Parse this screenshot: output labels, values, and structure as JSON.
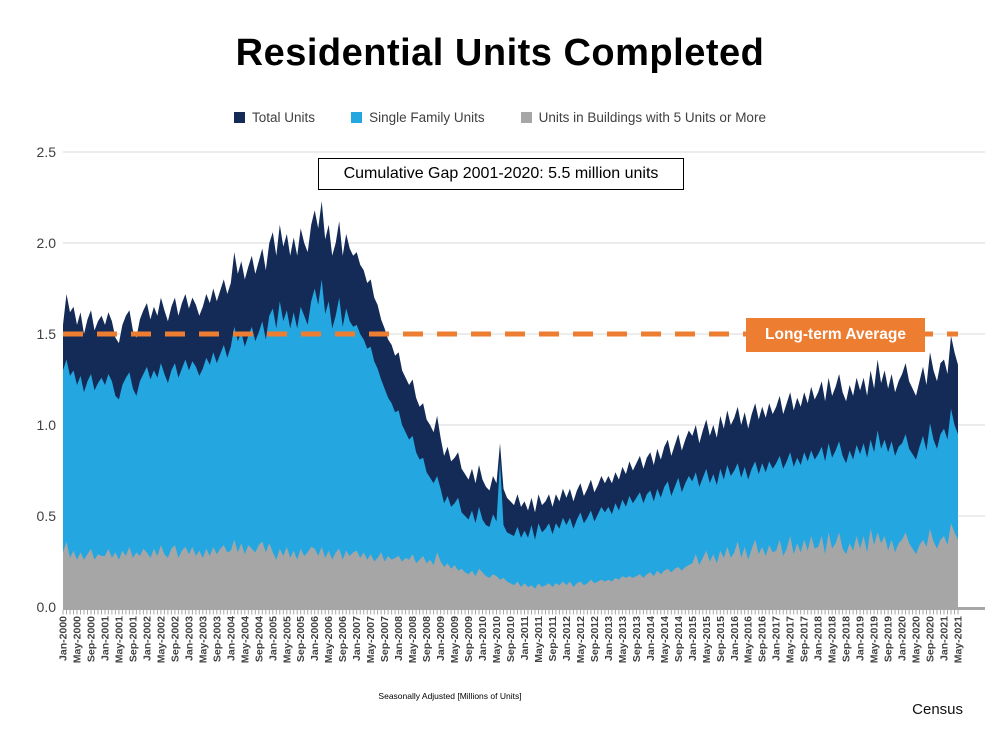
{
  "title": "Residential Units Completed",
  "legend": [
    {
      "label": "Total Units",
      "color": "#132B56"
    },
    {
      "label": "Single Family Units",
      "color": "#24A7E0"
    },
    {
      "label": "Units in Buildings with 5 Units or More",
      "color": "#A6A6A6"
    }
  ],
  "annotation": "Cumulative Gap 2001-2020: 5.5 million units",
  "average_line": {
    "label": "Long-term Average",
    "value": 1.5,
    "color": "#ED7D31"
  },
  "footer": {
    "note": "Seasonally Adjusted [Millions of Units]",
    "source": "Census"
  },
  "colors": {
    "gridline": "#D9D9D9",
    "axis": "#A6A6A6",
    "tick_text": "#404040"
  },
  "chart_data": {
    "type": "area",
    "mode": "overlapping",
    "frequency": "monthly",
    "x_start": "Jan-2000",
    "x_end": "May-2021",
    "months_per_label": 4,
    "ylim": [
      0,
      2.5
    ],
    "y_ticks": [
      "0.0",
      "0.5",
      "1.0",
      "1.5",
      "2.0",
      "2.5"
    ],
    "grid": true,
    "legend_position": "top",
    "x_labels": [
      "Jan-2000",
      "May-2000",
      "Sep-2000",
      "Jan-2001",
      "May-2001",
      "Sep-2001",
      "Jan-2002",
      "May-2002",
      "Sep-2002",
      "Jan-2003",
      "May-2003",
      "Sep-2003",
      "Jan-2004",
      "May-2004",
      "Sep-2004",
      "Jan-2005",
      "May-2005",
      "Sep-2005",
      "Jan-2006",
      "May-2006",
      "Sep-2006",
      "Jan-2007",
      "May-2007",
      "Sep-2007",
      "Jan-2008",
      "May-2008",
      "Sep-2008",
      "Jan-2009",
      "May-2009",
      "Sep-2009",
      "Jan-2010",
      "May-2010",
      "Sep-2010",
      "Jan-2011",
      "May-2011",
      "Sep-2011",
      "Jan-2012",
      "May-2012",
      "Sep-2012",
      "Jan-2013",
      "May-2013",
      "Sep-2013",
      "Jan-2014",
      "May-2014",
      "Sep-2014",
      "Jan-2015",
      "May-2015",
      "Sep-2015",
      "Jan-2016",
      "May-2016",
      "Sep-2016",
      "Jan-2017",
      "May-2017",
      "Sep-2017",
      "Jan-2018",
      "May-2018",
      "Sep-2018",
      "Jan-2019",
      "May-2019",
      "Sep-2019",
      "Jan-2020",
      "May-2020",
      "Sep-2020",
      "Jan-2021",
      "May-2021"
    ],
    "series": [
      {
        "name": "Total Units",
        "color": "#132B56",
        "values": [
          1.55,
          1.72,
          1.62,
          1.65,
          1.55,
          1.62,
          1.5,
          1.58,
          1.63,
          1.52,
          1.57,
          1.6,
          1.55,
          1.62,
          1.57,
          1.48,
          1.45,
          1.55,
          1.6,
          1.63,
          1.52,
          1.48,
          1.58,
          1.63,
          1.67,
          1.58,
          1.65,
          1.6,
          1.7,
          1.63,
          1.57,
          1.65,
          1.7,
          1.6,
          1.67,
          1.72,
          1.64,
          1.7,
          1.66,
          1.6,
          1.65,
          1.72,
          1.67,
          1.75,
          1.68,
          1.74,
          1.8,
          1.72,
          1.78,
          1.95,
          1.83,
          1.9,
          1.8,
          1.87,
          1.93,
          1.83,
          1.9,
          1.97,
          1.85,
          2.0,
          2.06,
          1.93,
          2.1,
          1.98,
          2.05,
          1.93,
          2.03,
          1.93,
          2.08,
          2.0,
          1.95,
          2.1,
          2.18,
          2.08,
          2.23,
          2.02,
          2.1,
          1.93,
          2.0,
          2.12,
          1.93,
          2.05,
          1.97,
          1.93,
          1.95,
          1.88,
          1.85,
          1.78,
          1.8,
          1.7,
          1.66,
          1.58,
          1.53,
          1.47,
          1.44,
          1.38,
          1.4,
          1.3,
          1.26,
          1.22,
          1.25,
          1.15,
          1.1,
          1.12,
          1.03,
          1.0,
          0.96,
          1.05,
          0.93,
          0.83,
          0.88,
          0.8,
          0.82,
          0.85,
          0.76,
          0.73,
          0.7,
          0.76,
          0.68,
          0.78,
          0.7,
          0.66,
          0.64,
          0.72,
          0.68,
          0.9,
          0.65,
          0.6,
          0.58,
          0.56,
          0.62,
          0.55,
          0.58,
          0.53,
          0.6,
          0.52,
          0.62,
          0.56,
          0.58,
          0.62,
          0.55,
          0.62,
          0.58,
          0.65,
          0.6,
          0.65,
          0.58,
          0.64,
          0.68,
          0.61,
          0.65,
          0.7,
          0.63,
          0.67,
          0.72,
          0.68,
          0.72,
          0.68,
          0.74,
          0.7,
          0.77,
          0.73,
          0.8,
          0.75,
          0.79,
          0.83,
          0.76,
          0.82,
          0.85,
          0.78,
          0.87,
          0.81,
          0.88,
          0.92,
          0.83,
          0.89,
          0.95,
          0.86,
          0.92,
          0.97,
          0.94,
          1.0,
          0.9,
          0.97,
          1.03,
          0.94,
          1.0,
          0.93,
          1.05,
          0.98,
          1.08,
          1.0,
          1.04,
          1.1,
          1.0,
          1.07,
          0.98,
          1.06,
          1.12,
          1.03,
          1.1,
          1.04,
          1.12,
          1.06,
          1.1,
          1.16,
          1.06,
          1.12,
          1.18,
          1.08,
          1.15,
          1.1,
          1.18,
          1.12,
          1.21,
          1.14,
          1.18,
          1.24,
          1.13,
          1.26,
          1.16,
          1.21,
          1.28,
          1.18,
          1.13,
          1.22,
          1.16,
          1.26,
          1.19,
          1.26,
          1.16,
          1.3,
          1.2,
          1.36,
          1.23,
          1.3,
          1.2,
          1.28,
          1.18,
          1.24,
          1.28,
          1.34,
          1.24,
          1.2,
          1.16,
          1.24,
          1.32,
          1.22,
          1.4,
          1.3,
          1.24,
          1.34,
          1.36,
          1.28,
          1.49,
          1.4,
          1.33
        ]
      },
      {
        "name": "Single Family Units",
        "color": "#24A7E0",
        "values": [
          1.3,
          1.36,
          1.27,
          1.3,
          1.22,
          1.27,
          1.18,
          1.24,
          1.28,
          1.19,
          1.23,
          1.26,
          1.22,
          1.28,
          1.24,
          1.16,
          1.14,
          1.22,
          1.26,
          1.29,
          1.2,
          1.16,
          1.24,
          1.28,
          1.32,
          1.25,
          1.3,
          1.26,
          1.34,
          1.28,
          1.23,
          1.3,
          1.34,
          1.26,
          1.31,
          1.36,
          1.3,
          1.35,
          1.32,
          1.27,
          1.31,
          1.37,
          1.33,
          1.4,
          1.34,
          1.39,
          1.44,
          1.37,
          1.43,
          1.54,
          1.46,
          1.51,
          1.43,
          1.49,
          1.54,
          1.46,
          1.51,
          1.57,
          1.47,
          1.6,
          1.64,
          1.53,
          1.68,
          1.57,
          1.63,
          1.53,
          1.62,
          1.53,
          1.65,
          1.6,
          1.55,
          1.68,
          1.75,
          1.66,
          1.8,
          1.61,
          1.68,
          1.53,
          1.6,
          1.7,
          1.54,
          1.64,
          1.57,
          1.54,
          1.55,
          1.5,
          1.47,
          1.42,
          1.43,
          1.35,
          1.31,
          1.25,
          1.2,
          1.15,
          1.12,
          1.07,
          1.08,
          1.0,
          0.96,
          0.92,
          0.94,
          0.85,
          0.81,
          0.82,
          0.74,
          0.71,
          0.68,
          0.72,
          0.65,
          0.57,
          0.61,
          0.55,
          0.57,
          0.6,
          0.52,
          0.5,
          0.48,
          0.53,
          0.46,
          0.55,
          0.48,
          0.45,
          0.44,
          0.51,
          0.47,
          0.8,
          0.45,
          0.41,
          0.4,
          0.39,
          0.44,
          0.38,
          0.42,
          0.38,
          0.45,
          0.37,
          0.46,
          0.41,
          0.43,
          0.46,
          0.4,
          0.46,
          0.43,
          0.49,
          0.45,
          0.49,
          0.43,
          0.48,
          0.52,
          0.46,
          0.49,
          0.53,
          0.47,
          0.51,
          0.55,
          0.52,
          0.55,
          0.51,
          0.57,
          0.53,
          0.59,
          0.55,
          0.61,
          0.57,
          0.6,
          0.63,
          0.57,
          0.62,
          0.64,
          0.58,
          0.65,
          0.6,
          0.66,
          0.69,
          0.61,
          0.66,
          0.71,
          0.63,
          0.68,
          0.72,
          0.69,
          0.74,
          0.66,
          0.71,
          0.76,
          0.68,
          0.73,
          0.67,
          0.76,
          0.7,
          0.78,
          0.72,
          0.75,
          0.79,
          0.71,
          0.77,
          0.7,
          0.76,
          0.8,
          0.73,
          0.79,
          0.74,
          0.8,
          0.76,
          0.79,
          0.83,
          0.76,
          0.8,
          0.85,
          0.77,
          0.82,
          0.78,
          0.85,
          0.8,
          0.86,
          0.81,
          0.84,
          0.88,
          0.8,
          0.9,
          0.82,
          0.86,
          0.91,
          0.83,
          0.79,
          0.86,
          0.81,
          0.89,
          0.84,
          0.9,
          0.82,
          0.92,
          0.85,
          0.97,
          0.87,
          0.92,
          0.85,
          0.91,
          0.83,
          0.88,
          0.9,
          0.95,
          0.87,
          0.84,
          0.81,
          0.88,
          0.94,
          0.86,
          1.01,
          0.92,
          0.87,
          0.95,
          0.98,
          0.92,
          1.09,
          1.0,
          0.95
        ]
      },
      {
        "name": "Units in Buildings with 5 Units or More",
        "color": "#A6A6A6",
        "values": [
          0.3,
          0.36,
          0.27,
          0.31,
          0.26,
          0.3,
          0.26,
          0.29,
          0.32,
          0.26,
          0.29,
          0.28,
          0.28,
          0.32,
          0.27,
          0.3,
          0.26,
          0.31,
          0.28,
          0.33,
          0.27,
          0.3,
          0.28,
          0.32,
          0.3,
          0.27,
          0.32,
          0.28,
          0.34,
          0.29,
          0.27,
          0.32,
          0.34,
          0.27,
          0.31,
          0.33,
          0.29,
          0.33,
          0.28,
          0.31,
          0.27,
          0.32,
          0.28,
          0.33,
          0.29,
          0.32,
          0.34,
          0.3,
          0.31,
          0.37,
          0.3,
          0.35,
          0.29,
          0.34,
          0.32,
          0.3,
          0.34,
          0.36,
          0.3,
          0.35,
          0.3,
          0.26,
          0.32,
          0.28,
          0.33,
          0.27,
          0.31,
          0.26,
          0.32,
          0.28,
          0.3,
          0.33,
          0.32,
          0.28,
          0.33,
          0.27,
          0.31,
          0.26,
          0.3,
          0.32,
          0.26,
          0.31,
          0.28,
          0.3,
          0.31,
          0.27,
          0.3,
          0.26,
          0.29,
          0.25,
          0.27,
          0.3,
          0.25,
          0.28,
          0.26,
          0.27,
          0.28,
          0.25,
          0.27,
          0.26,
          0.29,
          0.24,
          0.26,
          0.28,
          0.24,
          0.26,
          0.23,
          0.3,
          0.25,
          0.22,
          0.24,
          0.21,
          0.23,
          0.2,
          0.21,
          0.19,
          0.18,
          0.2,
          0.17,
          0.21,
          0.19,
          0.17,
          0.16,
          0.18,
          0.17,
          0.15,
          0.16,
          0.14,
          0.13,
          0.12,
          0.14,
          0.11,
          0.13,
          0.11,
          0.12,
          0.1,
          0.13,
          0.11,
          0.12,
          0.13,
          0.11,
          0.13,
          0.12,
          0.14,
          0.12,
          0.14,
          0.11,
          0.13,
          0.14,
          0.12,
          0.13,
          0.15,
          0.13,
          0.14,
          0.15,
          0.14,
          0.15,
          0.14,
          0.16,
          0.15,
          0.17,
          0.16,
          0.17,
          0.16,
          0.17,
          0.18,
          0.16,
          0.18,
          0.19,
          0.17,
          0.2,
          0.18,
          0.2,
          0.21,
          0.19,
          0.21,
          0.22,
          0.2,
          0.22,
          0.23,
          0.24,
          0.29,
          0.23,
          0.27,
          0.31,
          0.25,
          0.29,
          0.24,
          0.31,
          0.27,
          0.33,
          0.27,
          0.3,
          0.36,
          0.27,
          0.33,
          0.26,
          0.32,
          0.37,
          0.29,
          0.33,
          0.28,
          0.34,
          0.3,
          0.31,
          0.37,
          0.28,
          0.32,
          0.39,
          0.29,
          0.35,
          0.3,
          0.37,
          0.31,
          0.39,
          0.32,
          0.33,
          0.39,
          0.29,
          0.41,
          0.32,
          0.35,
          0.41,
          0.32,
          0.29,
          0.35,
          0.31,
          0.39,
          0.32,
          0.39,
          0.3,
          0.43,
          0.34,
          0.41,
          0.35,
          0.39,
          0.31,
          0.37,
          0.3,
          0.35,
          0.37,
          0.41,
          0.35,
          0.32,
          0.29,
          0.34,
          0.37,
          0.33,
          0.43,
          0.36,
          0.32,
          0.37,
          0.39,
          0.34,
          0.46,
          0.41,
          0.37
        ]
      }
    ]
  }
}
